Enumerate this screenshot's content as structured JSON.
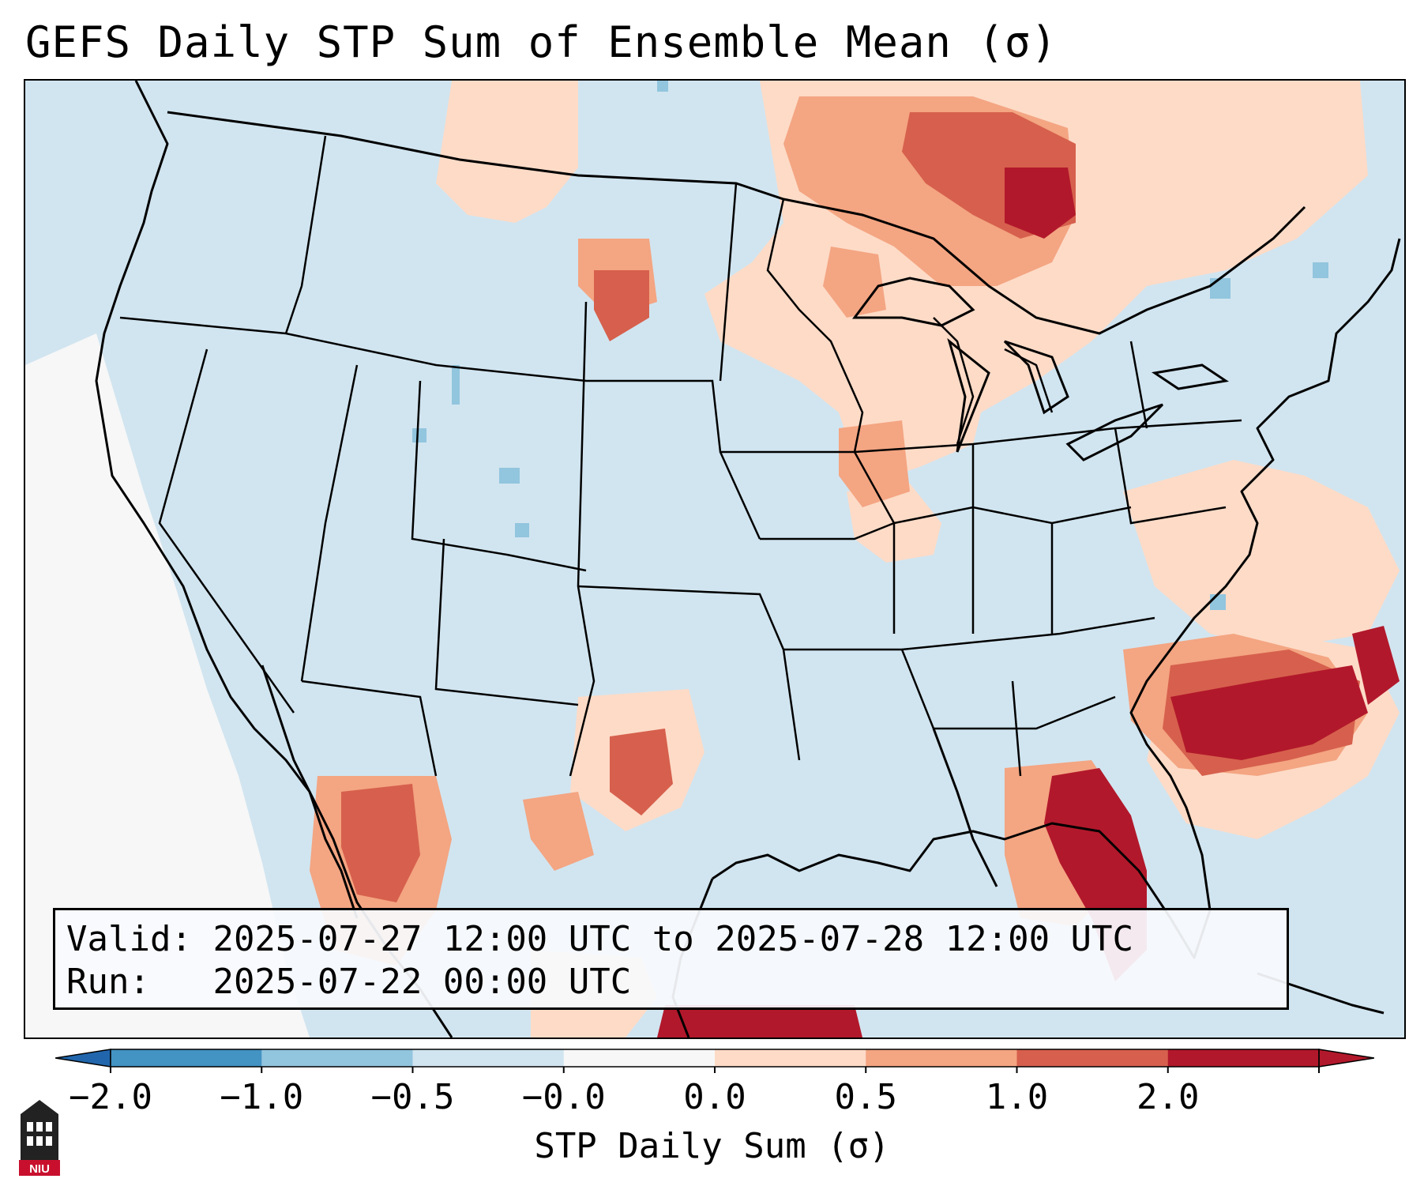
{
  "title": "GEFS Daily STP Sum of Ensemble Mean (σ)",
  "map": {
    "region": "Continental United States",
    "background_color": "#d1e5f0",
    "anomaly_regions": [
      {
        "name": "Upper Midwest / Great Lakes",
        "category": "0.5 to 1.0",
        "color": "#f4a582"
      },
      {
        "name": "Ontario",
        "category": "1.0 to 2.0",
        "color": "#d6604d"
      },
      {
        "name": "Southeast Atlantic coast",
        "category": "above 2.0",
        "color": "#b2182b"
      },
      {
        "name": "Florida",
        "category": "above 2.0",
        "color": "#b2182b"
      },
      {
        "name": "Central Texas",
        "category": "1.0 to 2.0",
        "color": "#d6604d"
      },
      {
        "name": "Northern Mexico",
        "category": "1.0 to 2.0",
        "color": "#d6604d"
      },
      {
        "name": "Pacific offshore",
        "category": "-0.0 to 0.0",
        "color": "#f7f7f7"
      }
    ]
  },
  "info": {
    "valid_label": "Valid:",
    "valid_value": "2025-07-27 12:00 UTC to 2025-07-28 12:00 UTC",
    "run_label": "Run:",
    "run_value": "2025-07-22 00:00 UTC"
  },
  "colorbar": {
    "label": "STP Daily Sum (σ)",
    "ticks": [
      "−2.0",
      "−1.0",
      "−0.5",
      "−0.0",
      "0.0",
      "0.5",
      "1.0",
      "2.0"
    ],
    "colors": [
      "#2166ac",
      "#4393c3",
      "#92c5de",
      "#d1e5f0",
      "#f7f7f7",
      "#fddbc7",
      "#f4a582",
      "#d6604d",
      "#b2182b",
      "#b2182b"
    ]
  },
  "logo": {
    "text": "NIU"
  }
}
